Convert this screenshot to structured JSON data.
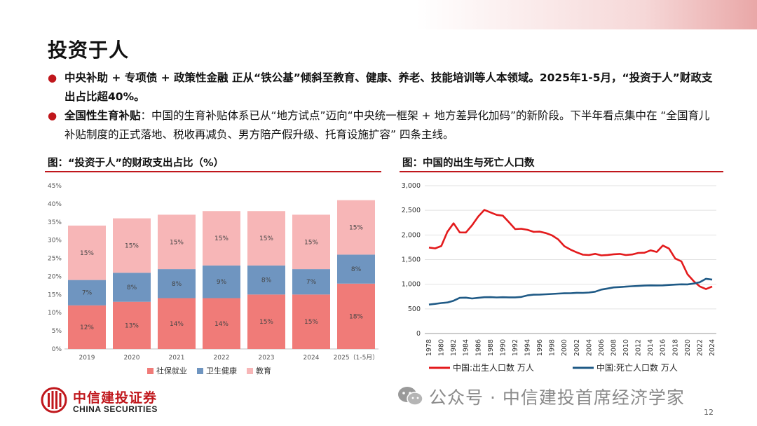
{
  "title": "投资于人",
  "bullets": [
    {
      "bold": "中央补助 + 专项债 + 政策性金融 正从“铁公基”倾斜至教育、健康、养老、技能培训等人本领域。2025年1-5月，“投资于人”财政支出占比超40%。",
      "text": ""
    },
    {
      "bold": "全国性生育补贴",
      "text": "：中国的生育补贴体系已从“地方试点”迈向“中央统一框架 + 地方差异化加码”的新阶段。下半年看点集中在 “全国育儿补贴制度的正式落地、税收再减负、男方陪产假升级、托育设施扩容” 四条主线。"
    }
  ],
  "left_chart_title": "图：“投资于人”的财政支出占比（%）",
  "right_chart_title": "图：中国的出生与死亡人口数",
  "colors": {
    "accent": "#c0171c",
    "social": "#f07b78",
    "health": "#6f95c0",
    "edu": "#f7b6b7",
    "birth": "#e31a1c",
    "death": "#1f5a86"
  },
  "chart_data": [
    {
      "type": "bar",
      "stacked": true,
      "categories": [
        "2019",
        "2020",
        "2021",
        "2022",
        "2023",
        "2024",
        "2025（1-5月）"
      ],
      "series": [
        {
          "name": "社保就业",
          "values": [
            12,
            13,
            14,
            14,
            15,
            15,
            18
          ],
          "labels": [
            "12%",
            "13%",
            "14%",
            "14%",
            "15%",
            "15%",
            "18%"
          ]
        },
        {
          "name": "卫生健康",
          "values": [
            7,
            8,
            8,
            9,
            8,
            7,
            8
          ],
          "labels": [
            "7%",
            "8%",
            "8%",
            "9%",
            "8%",
            "7%",
            "8%"
          ]
        },
        {
          "name": "教育",
          "values": [
            15,
            15,
            15,
            15,
            15,
            15,
            15
          ],
          "labels": [
            "15%",
            "15%",
            "15%",
            "15%",
            "15%",
            "15%",
            "15%"
          ]
        }
      ],
      "ylim": [
        0,
        45
      ],
      "yticks": [
        "0%",
        "5%",
        "10%",
        "15%",
        "20%",
        "25%",
        "30%",
        "35%",
        "40%",
        "45%"
      ],
      "legend_position": "bottom"
    },
    {
      "type": "line",
      "x": [
        1978,
        1979,
        1980,
        1981,
        1982,
        1983,
        1984,
        1985,
        1986,
        1987,
        1988,
        1989,
        1990,
        1991,
        1992,
        1993,
        1994,
        1995,
        1996,
        1997,
        1998,
        1999,
        2000,
        2001,
        2002,
        2003,
        2004,
        2005,
        2006,
        2007,
        2008,
        2009,
        2010,
        2011,
        2012,
        2013,
        2014,
        2015,
        2016,
        2017,
        2018,
        2019,
        2020,
        2021,
        2022,
        2023,
        2024
      ],
      "xticks": [
        "1978",
        "1980",
        "1982",
        "1984",
        "1986",
        "1988",
        "1990",
        "1992",
        "1994",
        "1996",
        "1998",
        "2000",
        "2002",
        "2004",
        "2006",
        "2008",
        "2010",
        "2012",
        "2014",
        "2016",
        "2018",
        "2020",
        "2022",
        "2024"
      ],
      "series": [
        {
          "name": "中国:出生人口数 万人",
          "values": [
            1745,
            1727,
            1776,
            2064,
            2237,
            2052,
            2050,
            2196,
            2374,
            2508,
            2457,
            2407,
            2391,
            2258,
            2119,
            2126,
            2104,
            2063,
            2067,
            2038,
            1991,
            1909,
            1771,
            1702,
            1647,
            1599,
            1593,
            1617,
            1585,
            1594,
            1608,
            1615,
            1592,
            1604,
            1635,
            1640,
            1687,
            1655,
            1786,
            1723,
            1523,
            1465,
            1202,
            1062,
            956,
            902,
            954
          ]
        },
        {
          "name": "中国:死亡人口数 万人",
          "values": [
            587,
            602,
            618,
            630,
            665,
            723,
            728,
            711,
            724,
            737,
            738,
            732,
            737,
            734,
            733,
            742,
            774,
            788,
            790,
            796,
            804,
            811,
            816,
            818,
            826,
            825,
            832,
            849,
            892,
            913,
            935,
            943,
            951,
            960,
            966,
            972,
            977,
            975,
            977,
            986,
            993,
            998,
            997,
            1014,
            1041,
            1110,
            1093
          ]
        }
      ],
      "ylim": [
        0,
        3000
      ],
      "yticks": [
        "0",
        "500",
        "1,000",
        "1,500",
        "2,000",
        "2,500",
        "3,000"
      ],
      "grid": true,
      "legend_position": "bottom"
    }
  ],
  "logo": {
    "cn": "中信建投证券",
    "en": "CHINA SECURITIES"
  },
  "watermark": "公众号 · 中信建投首席经济学家",
  "page_number": "12"
}
